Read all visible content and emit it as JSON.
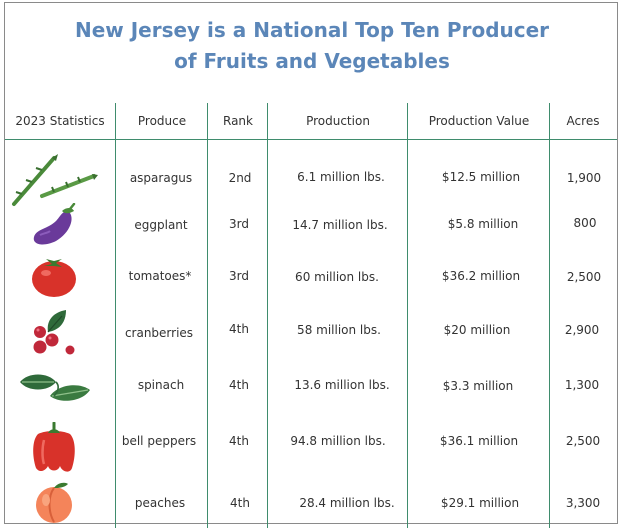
{
  "title_line1": "New Jersey is a National Top Ten Producer",
  "title_line2": "of Fruits and Vegetables",
  "headers": {
    "stats": "2023 Statistics",
    "produce": "Produce",
    "rank": "Rank",
    "production": "Production",
    "value": "Production Value",
    "acres": "Acres"
  },
  "rows": [
    {
      "icon": "asparagus-icon",
      "produce": "asparagus",
      "rank": "2nd",
      "production": "6.1 million lbs.",
      "value": "$12.5 million",
      "acres": "1,900"
    },
    {
      "icon": "eggplant-icon",
      "produce": "eggplant",
      "rank": "3rd",
      "production": "14.7 million lbs.",
      "value": "$5.8 million",
      "acres": "800"
    },
    {
      "icon": "tomato-icon",
      "produce": "tomatoes*",
      "rank": "3rd",
      "production": "60 million lbs.",
      "value": "$36.2 million",
      "acres": "2,500"
    },
    {
      "icon": "cranberries-icon",
      "produce": "cranberries",
      "rank": "4th",
      "production": "58 million lbs.",
      "value": "$20 million",
      "acres": "2,900"
    },
    {
      "icon": "spinach-icon",
      "produce": "spinach",
      "rank": "4th",
      "production": "13.6 million lbs.",
      "value": "$3.3 million",
      "acres": "1,300"
    },
    {
      "icon": "bell-pepper-icon",
      "produce": "bell peppers",
      "rank": "4th",
      "production": "94.8 million lbs.",
      "value": "$36.1 million",
      "acres": "2,500"
    },
    {
      "icon": "peach-icon",
      "produce": "peaches",
      "rank": "4th",
      "production": "28.4 million lbs.",
      "value": "$29.1 million",
      "acres": "3,300"
    }
  ],
  "colors": {
    "title": "#5b86b8",
    "rules": "#3f8c6d",
    "text": "#333333"
  }
}
